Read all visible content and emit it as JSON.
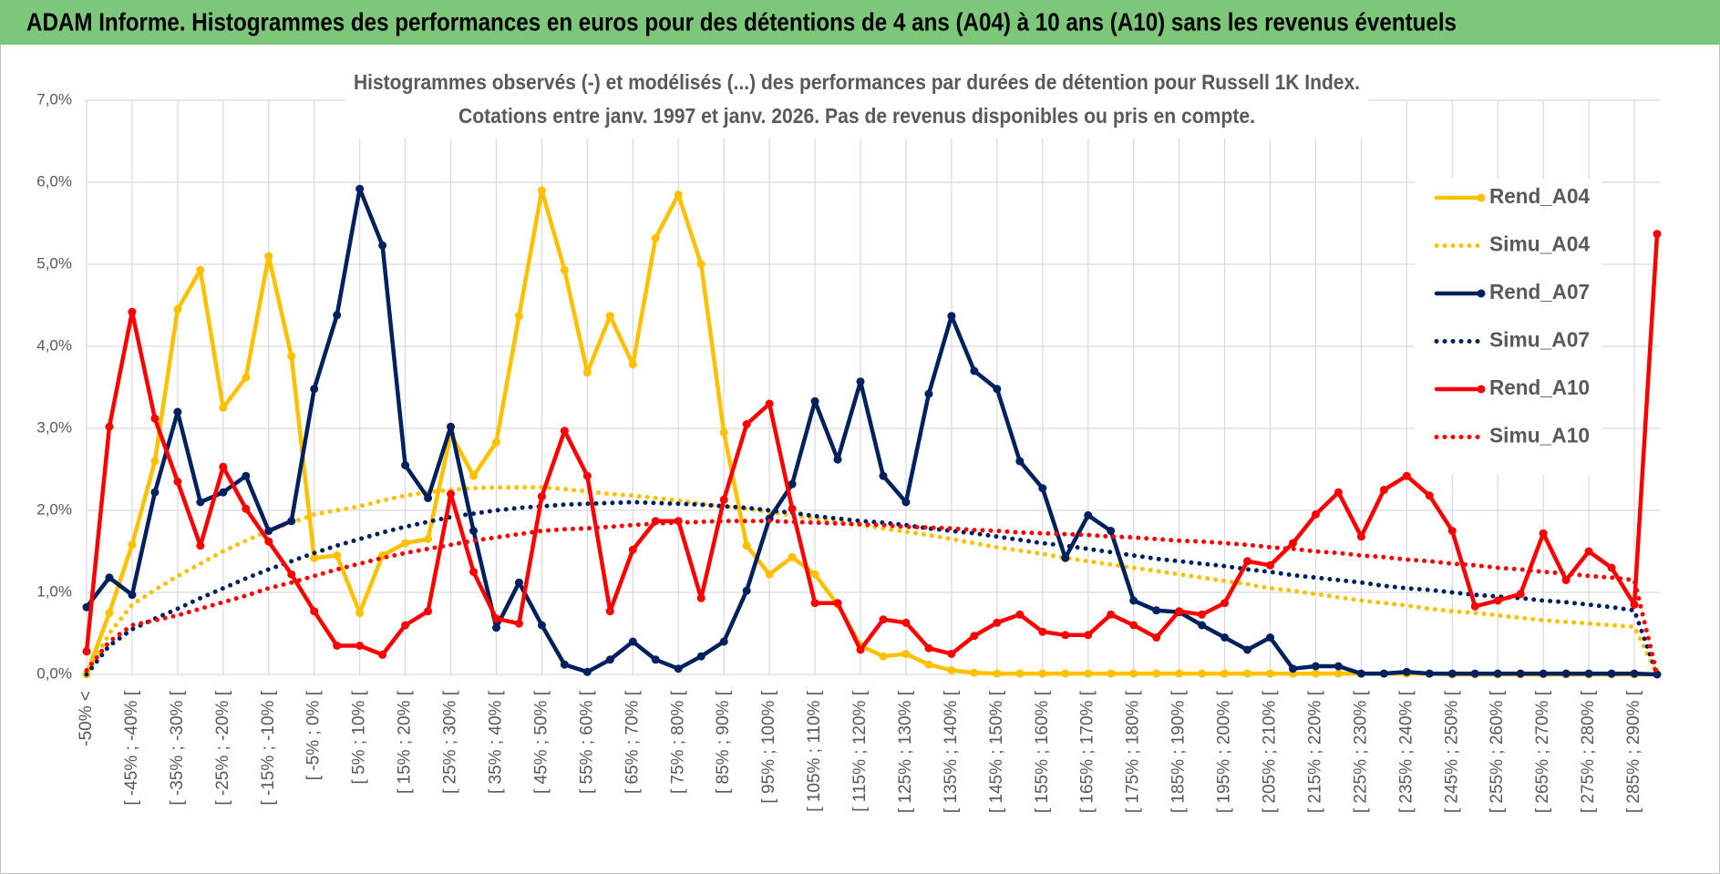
{
  "chart_data": {
    "type": "line",
    "title": "ADAM Informe. Histogrammes des performances en euros pour des détentions de 4 ans (A04) à 10 ans (A10) sans les revenus éventuels",
    "subtitle": [
      "Histogrammes observés (-) et modélisés (...) des performances par durées de détention pour Russell 1K Index.",
      "Cotations entre janv. 1997 et janv. 2026. Pas de revenus disponibles ou pris en compte."
    ],
    "categories": [
      "-50% <",
      null,
      "[ -45% ; -40% [",
      null,
      "[ -35% ; -30% [",
      null,
      "[ -25% ; -20% [",
      null,
      "[ -15% ; -10% [",
      null,
      "[ -5% ; 0% [",
      null,
      "[ 5% ; 10% [",
      null,
      "[ 15% ; 20% [",
      null,
      "[ 25% ; 30% [",
      null,
      "[ 35% ; 40% [",
      null,
      "[ 45% ; 50% [",
      null,
      "[ 55% ; 60% [",
      null,
      "[ 65% ; 70% [",
      null,
      "[ 75% ; 80% [",
      null,
      "[ 85% ; 90% [",
      null,
      "[ 95% ; 100% [",
      null,
      "[ 105% ; 110% [",
      null,
      "[ 115% ; 120% [",
      null,
      "[ 125% ; 130% [",
      null,
      "[ 135% ; 140% [",
      null,
      "[ 145% ; 150% [",
      null,
      "[ 155% ; 160% [",
      null,
      "[ 165% ; 170% [",
      null,
      "[ 175% ; 180% [",
      null,
      "[ 185% ; 190% [",
      null,
      "[ 195% ; 200% [",
      null,
      "[ 205% ; 210% [",
      null,
      "[ 215% ; 220% [",
      null,
      "[ 225% ; 230% [",
      null,
      "[ 235% ; 240% [",
      null,
      "[ 245% ; 250% [",
      null,
      "[ 255% ; 260% [",
      null,
      "[ 265% ; 270% [",
      null,
      "[ 275% ; 280% [",
      null,
      "[ 285% ; 290% [",
      null
    ],
    "series": [
      {
        "name": "Rend_A04",
        "color": "#ffc000",
        "line_style": "solid",
        "values": [
          0,
          0.75,
          1.58,
          2.6,
          4.45,
          4.93,
          3.25,
          3.62,
          5.1,
          3.88,
          1.42,
          1.45,
          0.75,
          1.45,
          1.6,
          1.65,
          2.93,
          2.42,
          2.83,
          4.37,
          5.9,
          4.93,
          3.68,
          4.37,
          3.78,
          5.32,
          5.85,
          5.0,
          2.95,
          1.57,
          1.22,
          1.43,
          1.22,
          0.85,
          0.35,
          0.22,
          0.25,
          0.12,
          0.05,
          0.02,
          0.01,
          0.01,
          0.01,
          0.01,
          0.01,
          0.01,
          0.01,
          0.01,
          0.01,
          0.01,
          0.01,
          0.01,
          0.01,
          0.01,
          0.01,
          0.01,
          0.01,
          0.01,
          0.01,
          0.01,
          0,
          0,
          0,
          0,
          0,
          0,
          0,
          0,
          0,
          0
        ]
      },
      {
        "name": "Simu_A04",
        "color": "#ffc000",
        "line_style": "dotted",
        "values": [
          0,
          0.5,
          0.85,
          1.03,
          1.2,
          1.35,
          1.5,
          1.63,
          1.75,
          1.85,
          1.95,
          2.0,
          2.05,
          2.12,
          2.18,
          2.22,
          2.25,
          2.27,
          2.28,
          2.28,
          2.28,
          2.26,
          2.23,
          2.2,
          2.18,
          2.15,
          2.12,
          2.08,
          2.05,
          2.02,
          1.98,
          1.94,
          1.9,
          1.86,
          1.82,
          1.78,
          1.74,
          1.7,
          1.65,
          1.6,
          1.55,
          1.51,
          1.47,
          1.42,
          1.38,
          1.34,
          1.3,
          1.26,
          1.22,
          1.18,
          1.14,
          1.1,
          1.05,
          1.02,
          0.98,
          0.94,
          0.9,
          0.87,
          0.84,
          0.8,
          0.77,
          0.75,
          0.72,
          0.69,
          0.66,
          0.64,
          0.62,
          0.6,
          0.58,
          0
        ]
      },
      {
        "name": "Rend_A07",
        "color": "#002060",
        "line_style": "solid",
        "values": [
          0.82,
          1.18,
          0.97,
          2.22,
          3.2,
          2.1,
          2.22,
          2.42,
          1.75,
          1.87,
          3.48,
          4.38,
          5.92,
          5.23,
          2.55,
          2.15,
          3.02,
          1.75,
          0.57,
          1.12,
          0.6,
          0.12,
          0.03,
          0.18,
          0.4,
          0.18,
          0.07,
          0.22,
          0.4,
          1.02,
          1.9,
          2.32,
          3.33,
          2.62,
          3.57,
          2.42,
          2.1,
          3.42,
          4.37,
          3.7,
          3.48,
          2.6,
          2.27,
          1.42,
          1.94,
          1.75,
          0.9,
          0.78,
          0.76,
          0.6,
          0.45,
          0.3,
          0.45,
          0.07,
          0.1,
          0.1,
          0.01,
          0.01,
          0.03,
          0.01,
          0.01,
          0.01,
          0.01,
          0.01,
          0.01,
          0.01,
          0.01,
          0.01,
          0.01,
          0
        ]
      },
      {
        "name": "Simu_A07",
        "color": "#002060",
        "line_style": "dotted",
        "values": [
          0,
          0.35,
          0.55,
          0.68,
          0.8,
          0.93,
          1.05,
          1.17,
          1.28,
          1.38,
          1.48,
          1.57,
          1.65,
          1.73,
          1.8,
          1.86,
          1.92,
          1.96,
          2.0,
          2.03,
          2.05,
          2.07,
          2.08,
          2.09,
          2.1,
          2.09,
          2.08,
          2.07,
          2.05,
          2.03,
          2.0,
          1.97,
          1.93,
          1.9,
          1.87,
          1.85,
          1.82,
          1.78,
          1.75,
          1.72,
          1.68,
          1.64,
          1.6,
          1.57,
          1.53,
          1.49,
          1.45,
          1.41,
          1.38,
          1.35,
          1.32,
          1.28,
          1.25,
          1.21,
          1.18,
          1.15,
          1.12,
          1.08,
          1.05,
          1.03,
          1.0,
          0.97,
          0.95,
          0.93,
          0.9,
          0.88,
          0.85,
          0.82,
          0.78,
          0
        ]
      },
      {
        "name": "Rend_A10",
        "color": "#ff0000",
        "line_style": "solid",
        "values": [
          0.28,
          3.02,
          4.42,
          3.12,
          2.35,
          1.57,
          2.53,
          2.02,
          1.62,
          1.22,
          0.77,
          0.35,
          0.35,
          0.24,
          0.6,
          0.77,
          2.2,
          1.25,
          0.68,
          0.62,
          2.17,
          2.97,
          2.42,
          0.77,
          1.52,
          1.87,
          1.87,
          0.93,
          2.13,
          3.05,
          3.3,
          2.02,
          0.87,
          0.87,
          0.3,
          0.67,
          0.63,
          0.32,
          0.25,
          0.47,
          0.63,
          0.73,
          0.52,
          0.48,
          0.48,
          0.73,
          0.6,
          0.45,
          0.77,
          0.73,
          0.87,
          1.38,
          1.33,
          1.6,
          1.95,
          2.22,
          1.68,
          2.25,
          2.42,
          2.18,
          1.75,
          0.83,
          0.9,
          0.98,
          1.72,
          1.15,
          1.5,
          1.3,
          0.85,
          5.37
        ]
      },
      {
        "name": "Simu_A10",
        "color": "#ff0000",
        "line_style": "dotted",
        "values": [
          0.05,
          0.4,
          0.6,
          0.66,
          0.72,
          0.8,
          0.88,
          0.96,
          1.05,
          1.12,
          1.2,
          1.28,
          1.35,
          1.42,
          1.48,
          1.53,
          1.58,
          1.63,
          1.67,
          1.71,
          1.75,
          1.77,
          1.78,
          1.8,
          1.82,
          1.84,
          1.85,
          1.86,
          1.87,
          1.87,
          1.87,
          1.86,
          1.85,
          1.84,
          1.83,
          1.82,
          1.8,
          1.79,
          1.78,
          1.76,
          1.75,
          1.73,
          1.72,
          1.71,
          1.7,
          1.68,
          1.67,
          1.65,
          1.63,
          1.62,
          1.6,
          1.58,
          1.55,
          1.53,
          1.5,
          1.48,
          1.45,
          1.43,
          1.4,
          1.38,
          1.35,
          1.33,
          1.3,
          1.28,
          1.25,
          1.23,
          1.2,
          1.18,
          1.15,
          0
        ]
      }
    ],
    "ylim": [
      0,
      7
    ],
    "yticks": [
      {
        "value": 0,
        "label": "0,0%"
      },
      {
        "value": 1,
        "label": "1,0%"
      },
      {
        "value": 2,
        "label": "2,0%"
      },
      {
        "value": 3,
        "label": "3,0%"
      },
      {
        "value": 4,
        "label": "4,0%"
      },
      {
        "value": 5,
        "label": "5,0%"
      },
      {
        "value": 6,
        "label": "6,0%"
      },
      {
        "value": 7,
        "label": "7,0%"
      }
    ],
    "grid": true,
    "legend": "right"
  }
}
